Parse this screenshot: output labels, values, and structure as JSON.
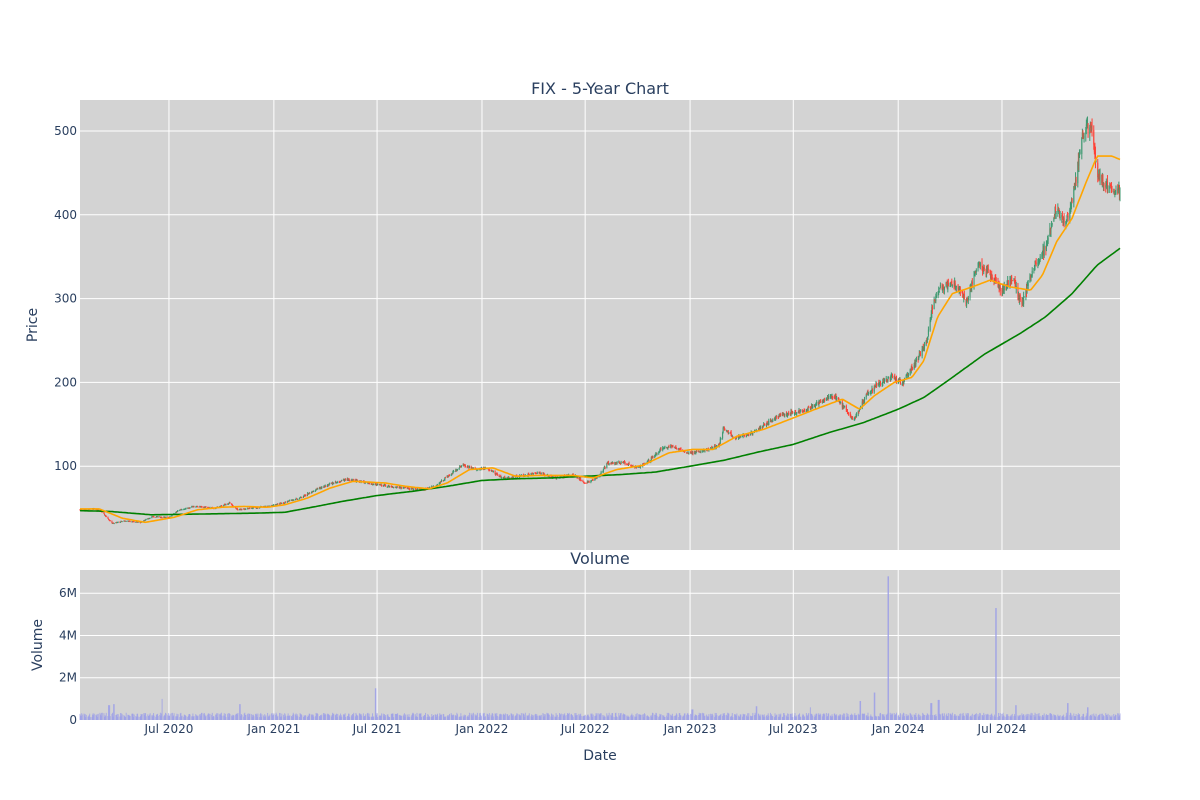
{
  "chart_data": [
    {
      "type": "candlestick",
      "title": "FIX - 5-Year Chart",
      "xlabel": "",
      "ylabel": "Price",
      "ylim": [
        0,
        537
      ],
      "yticks": [
        100,
        200,
        300,
        400,
        500
      ],
      "xlim": [
        "2020-01-27",
        "2025-01-24"
      ],
      "grid": true,
      "legend": "none",
      "colors": {
        "plot_bg": "#d3d3d3",
        "grid": "#ffffff",
        "up": "#3d9970",
        "down": "#ff4136",
        "ma_short": "#ffa500",
        "ma_long": "#008000",
        "text": "#2a3f5f"
      },
      "close_anchors": [
        [
          "2020-01-27",
          48
        ],
        [
          "2020-02-20",
          49
        ],
        [
          "2020-03-05",
          46
        ],
        [
          "2020-03-23",
          32
        ],
        [
          "2020-04-15",
          35
        ],
        [
          "2020-05-12",
          33
        ],
        [
          "2020-06-01",
          40
        ],
        [
          "2020-06-30",
          39
        ],
        [
          "2020-07-20",
          48
        ],
        [
          "2020-08-15",
          52
        ],
        [
          "2020-09-20",
          50
        ],
        [
          "2020-10-15",
          56
        ],
        [
          "2020-10-30",
          48
        ],
        [
          "2020-11-20",
          50
        ],
        [
          "2020-12-20",
          52
        ],
        [
          "2021-01-15",
          56
        ],
        [
          "2021-02-15",
          62
        ],
        [
          "2021-03-15",
          72
        ],
        [
          "2021-04-15",
          80
        ],
        [
          "2021-05-10",
          84
        ],
        [
          "2021-06-01",
          82
        ],
        [
          "2021-07-01",
          78
        ],
        [
          "2021-08-15",
          74
        ],
        [
          "2021-09-20",
          72
        ],
        [
          "2021-10-10",
          76
        ],
        [
          "2021-11-10",
          92
        ],
        [
          "2021-11-29",
          102
        ],
        [
          "2021-12-20",
          96
        ],
        [
          "2022-01-10",
          98
        ],
        [
          "2022-02-05",
          86
        ],
        [
          "2022-03-10",
          88
        ],
        [
          "2022-04-10",
          92
        ],
        [
          "2022-05-10",
          86
        ],
        [
          "2022-06-10",
          90
        ],
        [
          "2022-07-01",
          80
        ],
        [
          "2022-07-25",
          88
        ],
        [
          "2022-08-10",
          104
        ],
        [
          "2022-09-10",
          104
        ],
        [
          "2022-10-01",
          98
        ],
        [
          "2022-10-20",
          106
        ],
        [
          "2022-11-10",
          120
        ],
        [
          "2022-12-01",
          124
        ],
        [
          "2022-12-30",
          116
        ],
        [
          "2023-01-20",
          118
        ],
        [
          "2023-02-20",
          124
        ],
        [
          "2023-03-01",
          146
        ],
        [
          "2023-03-20",
          134
        ],
        [
          "2023-04-20",
          140
        ],
        [
          "2023-05-10",
          148
        ],
        [
          "2023-06-10",
          162
        ],
        [
          "2023-07-20",
          166
        ],
        [
          "2023-08-15",
          176
        ],
        [
          "2023-09-10",
          184
        ],
        [
          "2023-09-28",
          170
        ],
        [
          "2023-10-15",
          154
        ],
        [
          "2023-11-05",
          184
        ],
        [
          "2023-11-25",
          198
        ],
        [
          "2023-12-20",
          206
        ],
        [
          "2024-01-10",
          200
        ],
        [
          "2024-02-05",
          230
        ],
        [
          "2024-02-20",
          248
        ],
        [
          "2024-03-01",
          290
        ],
        [
          "2024-03-15",
          314
        ],
        [
          "2024-04-10",
          316
        ],
        [
          "2024-04-30",
          296
        ],
        [
          "2024-05-20",
          340
        ],
        [
          "2024-06-10",
          330
        ],
        [
          "2024-07-01",
          310
        ],
        [
          "2024-07-20",
          326
        ],
        [
          "2024-08-05",
          292
        ],
        [
          "2024-08-25",
          340
        ],
        [
          "2024-09-15",
          360
        ],
        [
          "2024-10-05",
          410
        ],
        [
          "2024-10-20",
          385
        ],
        [
          "2024-11-05",
          432
        ],
        [
          "2024-11-20",
          500
        ],
        [
          "2024-12-05",
          505
        ],
        [
          "2024-12-15",
          450
        ],
        [
          "2025-01-05",
          430
        ],
        [
          "2025-01-24",
          428
        ]
      ],
      "ma_short_anchors": [
        [
          "2020-01-27",
          49
        ],
        [
          "2020-03-01",
          49
        ],
        [
          "2020-04-10",
          38
        ],
        [
          "2020-05-20",
          33
        ],
        [
          "2020-07-10",
          39
        ],
        [
          "2020-08-20",
          48
        ],
        [
          "2020-10-01",
          51
        ],
        [
          "2020-11-10",
          52
        ],
        [
          "2020-12-20",
          51
        ],
        [
          "2021-01-20",
          54
        ],
        [
          "2021-03-01",
          62
        ],
        [
          "2021-04-10",
          74
        ],
        [
          "2021-05-20",
          82
        ],
        [
          "2021-07-15",
          80
        ],
        [
          "2021-08-20",
          76
        ],
        [
          "2021-09-30",
          73
        ],
        [
          "2021-11-01",
          80
        ],
        [
          "2021-12-10",
          96
        ],
        [
          "2022-01-20",
          98
        ],
        [
          "2022-03-01",
          88
        ],
        [
          "2022-04-10",
          89
        ],
        [
          "2022-06-10",
          89
        ],
        [
          "2022-07-15",
          86
        ],
        [
          "2022-08-25",
          96
        ],
        [
          "2022-10-10",
          101
        ],
        [
          "2022-11-25",
          116
        ],
        [
          "2023-01-05",
          120
        ],
        [
          "2023-02-10",
          120
        ],
        [
          "2023-03-25",
          136
        ],
        [
          "2023-05-10",
          144
        ],
        [
          "2023-06-25",
          156
        ],
        [
          "2023-08-05",
          167
        ],
        [
          "2023-09-25",
          180
        ],
        [
          "2023-10-25",
          168
        ],
        [
          "2023-11-20",
          184
        ],
        [
          "2023-12-25",
          200
        ],
        [
          "2024-01-25",
          206
        ],
        [
          "2024-02-15",
          226
        ],
        [
          "2024-03-10",
          278
        ],
        [
          "2024-04-05",
          306
        ],
        [
          "2024-05-10",
          314
        ],
        [
          "2024-06-10",
          322
        ],
        [
          "2024-07-15",
          314
        ],
        [
          "2024-08-20",
          310
        ],
        [
          "2024-09-10",
          328
        ],
        [
          "2024-10-05",
          368
        ],
        [
          "2024-11-01",
          396
        ],
        [
          "2024-11-25",
          438
        ],
        [
          "2024-12-15",
          470
        ],
        [
          "2025-01-10",
          470
        ],
        [
          "2025-01-24",
          466
        ]
      ],
      "ma_long_anchors": [
        [
          "2020-01-27",
          47
        ],
        [
          "2020-03-20",
          46
        ],
        [
          "2020-06-01",
          42
        ],
        [
          "2020-09-01",
          43
        ],
        [
          "2020-12-01",
          44
        ],
        [
          "2021-01-20",
          45
        ],
        [
          "2021-03-01",
          50
        ],
        [
          "2021-05-01",
          58
        ],
        [
          "2021-07-01",
          65
        ],
        [
          "2021-09-01",
          70
        ],
        [
          "2021-11-01",
          76
        ],
        [
          "2022-01-01",
          83
        ],
        [
          "2022-03-01",
          85
        ],
        [
          "2022-05-01",
          86
        ],
        [
          "2022-07-01",
          88
        ],
        [
          "2022-09-01",
          90
        ],
        [
          "2022-11-01",
          93
        ],
        [
          "2023-01-01",
          100
        ],
        [
          "2023-03-01",
          107
        ],
        [
          "2023-05-01",
          117
        ],
        [
          "2023-07-01",
          126
        ],
        [
          "2023-09-01",
          140
        ],
        [
          "2023-11-01",
          152
        ],
        [
          "2024-01-01",
          168
        ],
        [
          "2024-02-15",
          182
        ],
        [
          "2024-04-01",
          204
        ],
        [
          "2024-06-01",
          234
        ],
        [
          "2024-08-01",
          258
        ],
        [
          "2024-09-15",
          278
        ],
        [
          "2024-11-01",
          306
        ],
        [
          "2024-12-15",
          340
        ],
        [
          "2025-01-24",
          360
        ]
      ]
    },
    {
      "type": "bar",
      "title": "Volume",
      "xlabel": "Date",
      "ylabel": "Volume",
      "ylim": [
        0,
        7100000
      ],
      "yticks": [
        0,
        2000000,
        4000000,
        6000000
      ],
      "ytick_labels": [
        "0",
        "2M",
        "4M",
        "6M"
      ],
      "xticks": [
        "2020-07-01",
        "2021-01-01",
        "2021-07-01",
        "2022-01-01",
        "2022-07-01",
        "2023-01-01",
        "2023-07-01",
        "2024-01-01",
        "2024-07-01"
      ],
      "xtick_labels": [
        "Jul 2020",
        "Jan 2021",
        "Jul 2021",
        "Jan 2022",
        "Jul 2022",
        "Jan 2023",
        "Jul 2023",
        "Jan 2024",
        "Jul 2024"
      ],
      "xlim": [
        "2020-01-27",
        "2025-01-24"
      ],
      "bar_color": "#9b9ee8",
      "base_volume": 300000,
      "volume_spikes": [
        [
          "2020-03-18",
          700000
        ],
        [
          "2020-03-27",
          750000
        ],
        [
          "2020-06-20",
          1000000
        ],
        [
          "2020-11-02",
          750000
        ],
        [
          "2021-06-28",
          1500000
        ],
        [
          "2023-01-05",
          500000
        ],
        [
          "2023-04-28",
          650000
        ],
        [
          "2023-07-30",
          600000
        ],
        [
          "2023-10-27",
          900000
        ],
        [
          "2023-11-20",
          1300000
        ],
        [
          "2023-12-15",
          6800000
        ],
        [
          "2024-02-28",
          800000
        ],
        [
          "2024-03-12",
          950000
        ],
        [
          "2024-06-21",
          5300000
        ],
        [
          "2024-07-26",
          700000
        ],
        [
          "2024-10-25",
          800000
        ],
        [
          "2024-11-29",
          600000
        ]
      ]
    }
  ]
}
